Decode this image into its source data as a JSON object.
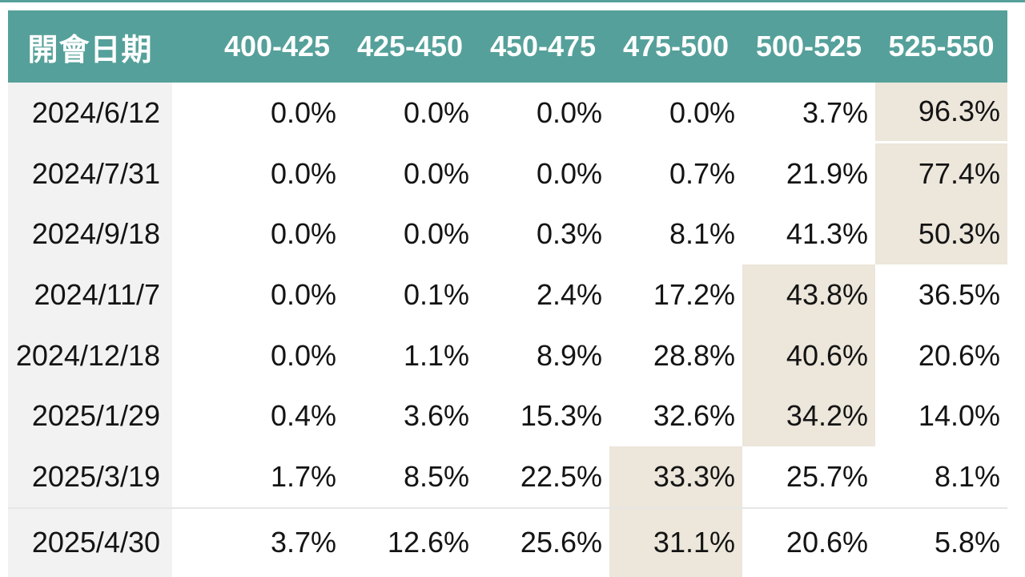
{
  "page": {
    "accent_teal": "#55a09a",
    "highlight_beige": "#ece6db",
    "date_column_gray": "#f2f2f2",
    "separator_gray": "#e6e6e6",
    "text_color": "#141414",
    "header_text_color": "#ffffff"
  },
  "chart_data": {
    "type": "table",
    "columns": [
      "開會日期",
      "400-425",
      "425-450",
      "450-475",
      "475-500",
      "500-525",
      "525-550"
    ],
    "rows": [
      {
        "date": "2024/6/12",
        "values": [
          "0.0%",
          "0.0%",
          "0.0%",
          "0.0%",
          "3.7%",
          "96.3%"
        ],
        "highlight_column": "525-550"
      },
      {
        "date": "2024/7/31",
        "values": [
          "0.0%",
          "0.0%",
          "0.0%",
          "0.7%",
          "21.9%",
          "77.4%"
        ],
        "highlight_column": "525-550"
      },
      {
        "date": "2024/9/18",
        "values": [
          "0.0%",
          "0.0%",
          "0.3%",
          "8.1%",
          "41.3%",
          "50.3%"
        ],
        "highlight_column": "525-550"
      },
      {
        "date": "2024/11/7",
        "values": [
          "0.0%",
          "0.1%",
          "2.4%",
          "17.2%",
          "43.8%",
          "36.5%"
        ],
        "highlight_column": "500-525"
      },
      {
        "date": "2024/12/18",
        "values": [
          "0.0%",
          "1.1%",
          "8.9%",
          "28.8%",
          "40.6%",
          "20.6%"
        ],
        "highlight_column": "500-525"
      },
      {
        "date": "2025/1/29",
        "values": [
          "0.4%",
          "3.6%",
          "15.3%",
          "32.6%",
          "34.2%",
          "14.0%"
        ],
        "highlight_column": "500-525"
      },
      {
        "date": "2025/3/19",
        "values": [
          "1.7%",
          "8.5%",
          "22.5%",
          "33.3%",
          "25.7%",
          "8.1%"
        ],
        "highlight_column": "475-500"
      },
      {
        "date": "2025/4/30",
        "values": [
          "3.7%",
          "12.6%",
          "25.6%",
          "31.1%",
          "20.6%",
          "5.8%"
        ],
        "highlight_column": "475-500"
      }
    ],
    "layout": {
      "grid": "off",
      "value_alignment": "right",
      "header_alignment": "center",
      "highlight_rule": "highest probability cell per row shaded beige"
    }
  }
}
